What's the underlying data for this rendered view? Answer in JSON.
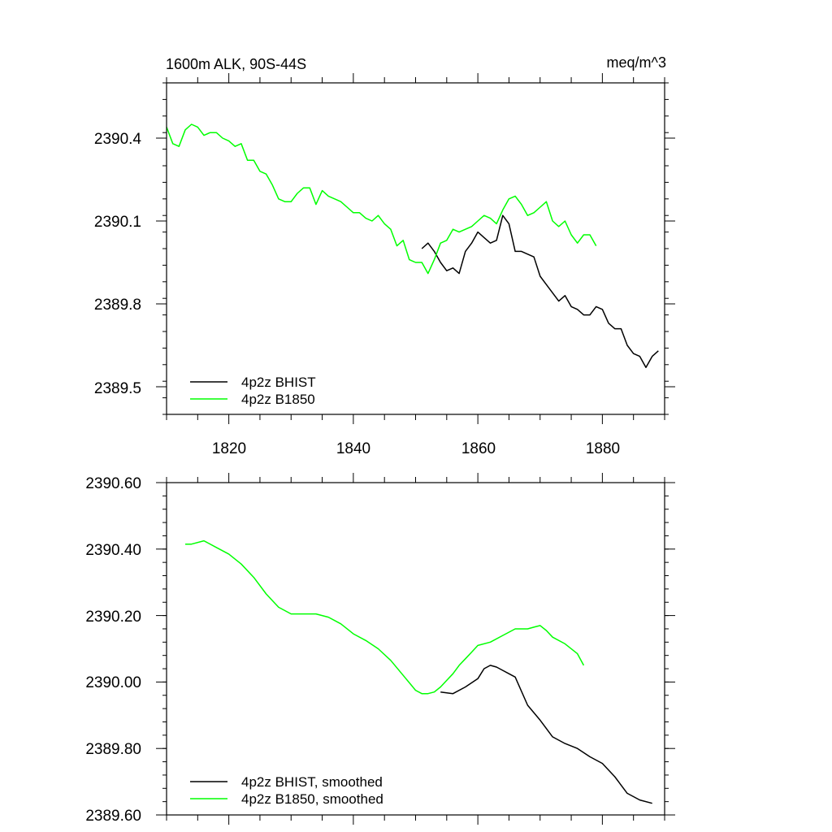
{
  "chart_data": [
    {
      "type": "line",
      "title": "1600m ALK, 90S-44S",
      "units": "meq/m^3",
      "xlim": [
        1810,
        1890
      ],
      "ylim": [
        2389.4,
        2390.6
      ],
      "x_ticks": [
        "1820",
        "1840",
        "1860",
        "1880"
      ],
      "y_ticks": [
        "2390.4",
        "2390.1",
        "2389.8",
        "2389.5"
      ],
      "legend_position": "bottom-left",
      "series": [
        {
          "name": "4p2z BHIST",
          "color": "#000000",
          "x": [
            1851,
            1852,
            1853,
            1854,
            1855,
            1856,
            1857,
            1858,
            1859,
            1860,
            1861,
            1862,
            1863,
            1864,
            1865,
            1866,
            1867,
            1868,
            1869,
            1870,
            1871,
            1872,
            1873,
            1874,
            1875,
            1876,
            1877,
            1878,
            1879,
            1880,
            1881,
            1882,
            1883,
            1884,
            1885,
            1886,
            1887,
            1888,
            1889
          ],
          "y": [
            2390.0,
            2390.02,
            2389.99,
            2389.95,
            2389.92,
            2389.93,
            2389.91,
            2389.99,
            2390.02,
            2390.06,
            2390.04,
            2390.02,
            2390.03,
            2390.12,
            2390.09,
            2389.99,
            2389.99,
            2389.98,
            2389.97,
            2389.9,
            2389.87,
            2389.84,
            2389.81,
            2389.83,
            2389.79,
            2389.78,
            2389.76,
            2389.76,
            2389.79,
            2389.78,
            2389.73,
            2389.71,
            2389.71,
            2389.65,
            2389.62,
            2389.61,
            2389.57,
            2389.61,
            2389.63
          ]
        },
        {
          "name": "4p2z B1850",
          "color": "#00ff00",
          "x": [
            1810,
            1811,
            1812,
            1813,
            1814,
            1815,
            1816,
            1817,
            1818,
            1819,
            1820,
            1821,
            1822,
            1823,
            1824,
            1825,
            1826,
            1827,
            1828,
            1829,
            1830,
            1831,
            1832,
            1833,
            1834,
            1835,
            1836,
            1837,
            1838,
            1839,
            1840,
            1841,
            1842,
            1843,
            1844,
            1845,
            1846,
            1847,
            1848,
            1849,
            1850,
            1851,
            1852,
            1853,
            1854,
            1855,
            1856,
            1857,
            1858,
            1859,
            1860,
            1861,
            1862,
            1863,
            1864,
            1865,
            1866,
            1867,
            1868,
            1869,
            1870,
            1871,
            1872,
            1873,
            1874,
            1875,
            1876,
            1877,
            1878,
            1879
          ],
          "y": [
            2390.44,
            2390.38,
            2390.37,
            2390.43,
            2390.45,
            2390.44,
            2390.41,
            2390.42,
            2390.42,
            2390.4,
            2390.39,
            2390.37,
            2390.38,
            2390.32,
            2390.32,
            2390.28,
            2390.27,
            2390.23,
            2390.18,
            2390.17,
            2390.17,
            2390.2,
            2390.22,
            2390.22,
            2390.16,
            2390.21,
            2390.19,
            2390.18,
            2390.17,
            2390.15,
            2390.13,
            2390.13,
            2390.11,
            2390.1,
            2390.12,
            2390.09,
            2390.07,
            2390.01,
            2390.03,
            2389.96,
            2389.95,
            2389.95,
            2389.91,
            2389.96,
            2390.02,
            2390.03,
            2390.07,
            2390.06,
            2390.07,
            2390.08,
            2390.1,
            2390.12,
            2390.11,
            2390.09,
            2390.14,
            2390.18,
            2390.19,
            2390.16,
            2390.12,
            2390.13,
            2390.15,
            2390.17,
            2390.1,
            2390.08,
            2390.1,
            2390.05,
            2390.02,
            2390.05,
            2390.05,
            2390.01
          ]
        }
      ]
    },
    {
      "type": "line",
      "xlim": [
        1810,
        1890
      ],
      "ylim": [
        2389.6,
        2390.6
      ],
      "x_ticks": [
        "1820",
        "1840",
        "1860",
        "1880"
      ],
      "y_ticks": [
        "2390.60",
        "2390.40",
        "2390.20",
        "2390.00",
        "2389.80",
        "2389.60"
      ],
      "legend_position": "bottom-left",
      "series": [
        {
          "name": "4p2z BHIST, smoothed",
          "color": "#000000",
          "x": [
            1854,
            1856,
            1858,
            1860,
            1861,
            1862,
            1863,
            1864,
            1865,
            1866,
            1868,
            1870,
            1872,
            1874,
            1876,
            1878,
            1880,
            1882,
            1884,
            1886,
            1888
          ],
          "y": [
            2389.97,
            2389.965,
            2389.985,
            2390.01,
            2390.04,
            2390.05,
            2390.045,
            2390.035,
            2390.025,
            2390.015,
            2389.93,
            2389.885,
            2389.835,
            2389.815,
            2389.8,
            2389.775,
            2389.755,
            2389.715,
            2389.665,
            2389.645,
            2389.635
          ]
        },
        {
          "name": "4p2z B1850, smoothed",
          "color": "#00ff00",
          "x": [
            1813,
            1814,
            1816,
            1818,
            1820,
            1822,
            1824,
            1826,
            1828,
            1830,
            1832,
            1834,
            1836,
            1838,
            1840,
            1842,
            1844,
            1846,
            1848,
            1850,
            1851,
            1852,
            1853,
            1854,
            1855,
            1856,
            1857,
            1858,
            1859,
            1860,
            1862,
            1864,
            1866,
            1868,
            1869,
            1870,
            1871,
            1872,
            1874,
            1876,
            1877
          ],
          "y": [
            2390.415,
            2390.415,
            2390.425,
            2390.405,
            2390.385,
            2390.355,
            2390.315,
            2390.265,
            2390.225,
            2390.205,
            2390.205,
            2390.205,
            2390.195,
            2390.175,
            2390.145,
            2390.125,
            2390.1,
            2390.065,
            2390.02,
            2389.975,
            2389.965,
            2389.965,
            2389.97,
            2389.985,
            2390.005,
            2390.025,
            2390.05,
            2390.07,
            2390.09,
            2390.11,
            2390.12,
            2390.14,
            2390.16,
            2390.16,
            2390.165,
            2390.17,
            2390.155,
            2390.135,
            2390.115,
            2390.085,
            2390.05
          ]
        }
      ]
    }
  ]
}
